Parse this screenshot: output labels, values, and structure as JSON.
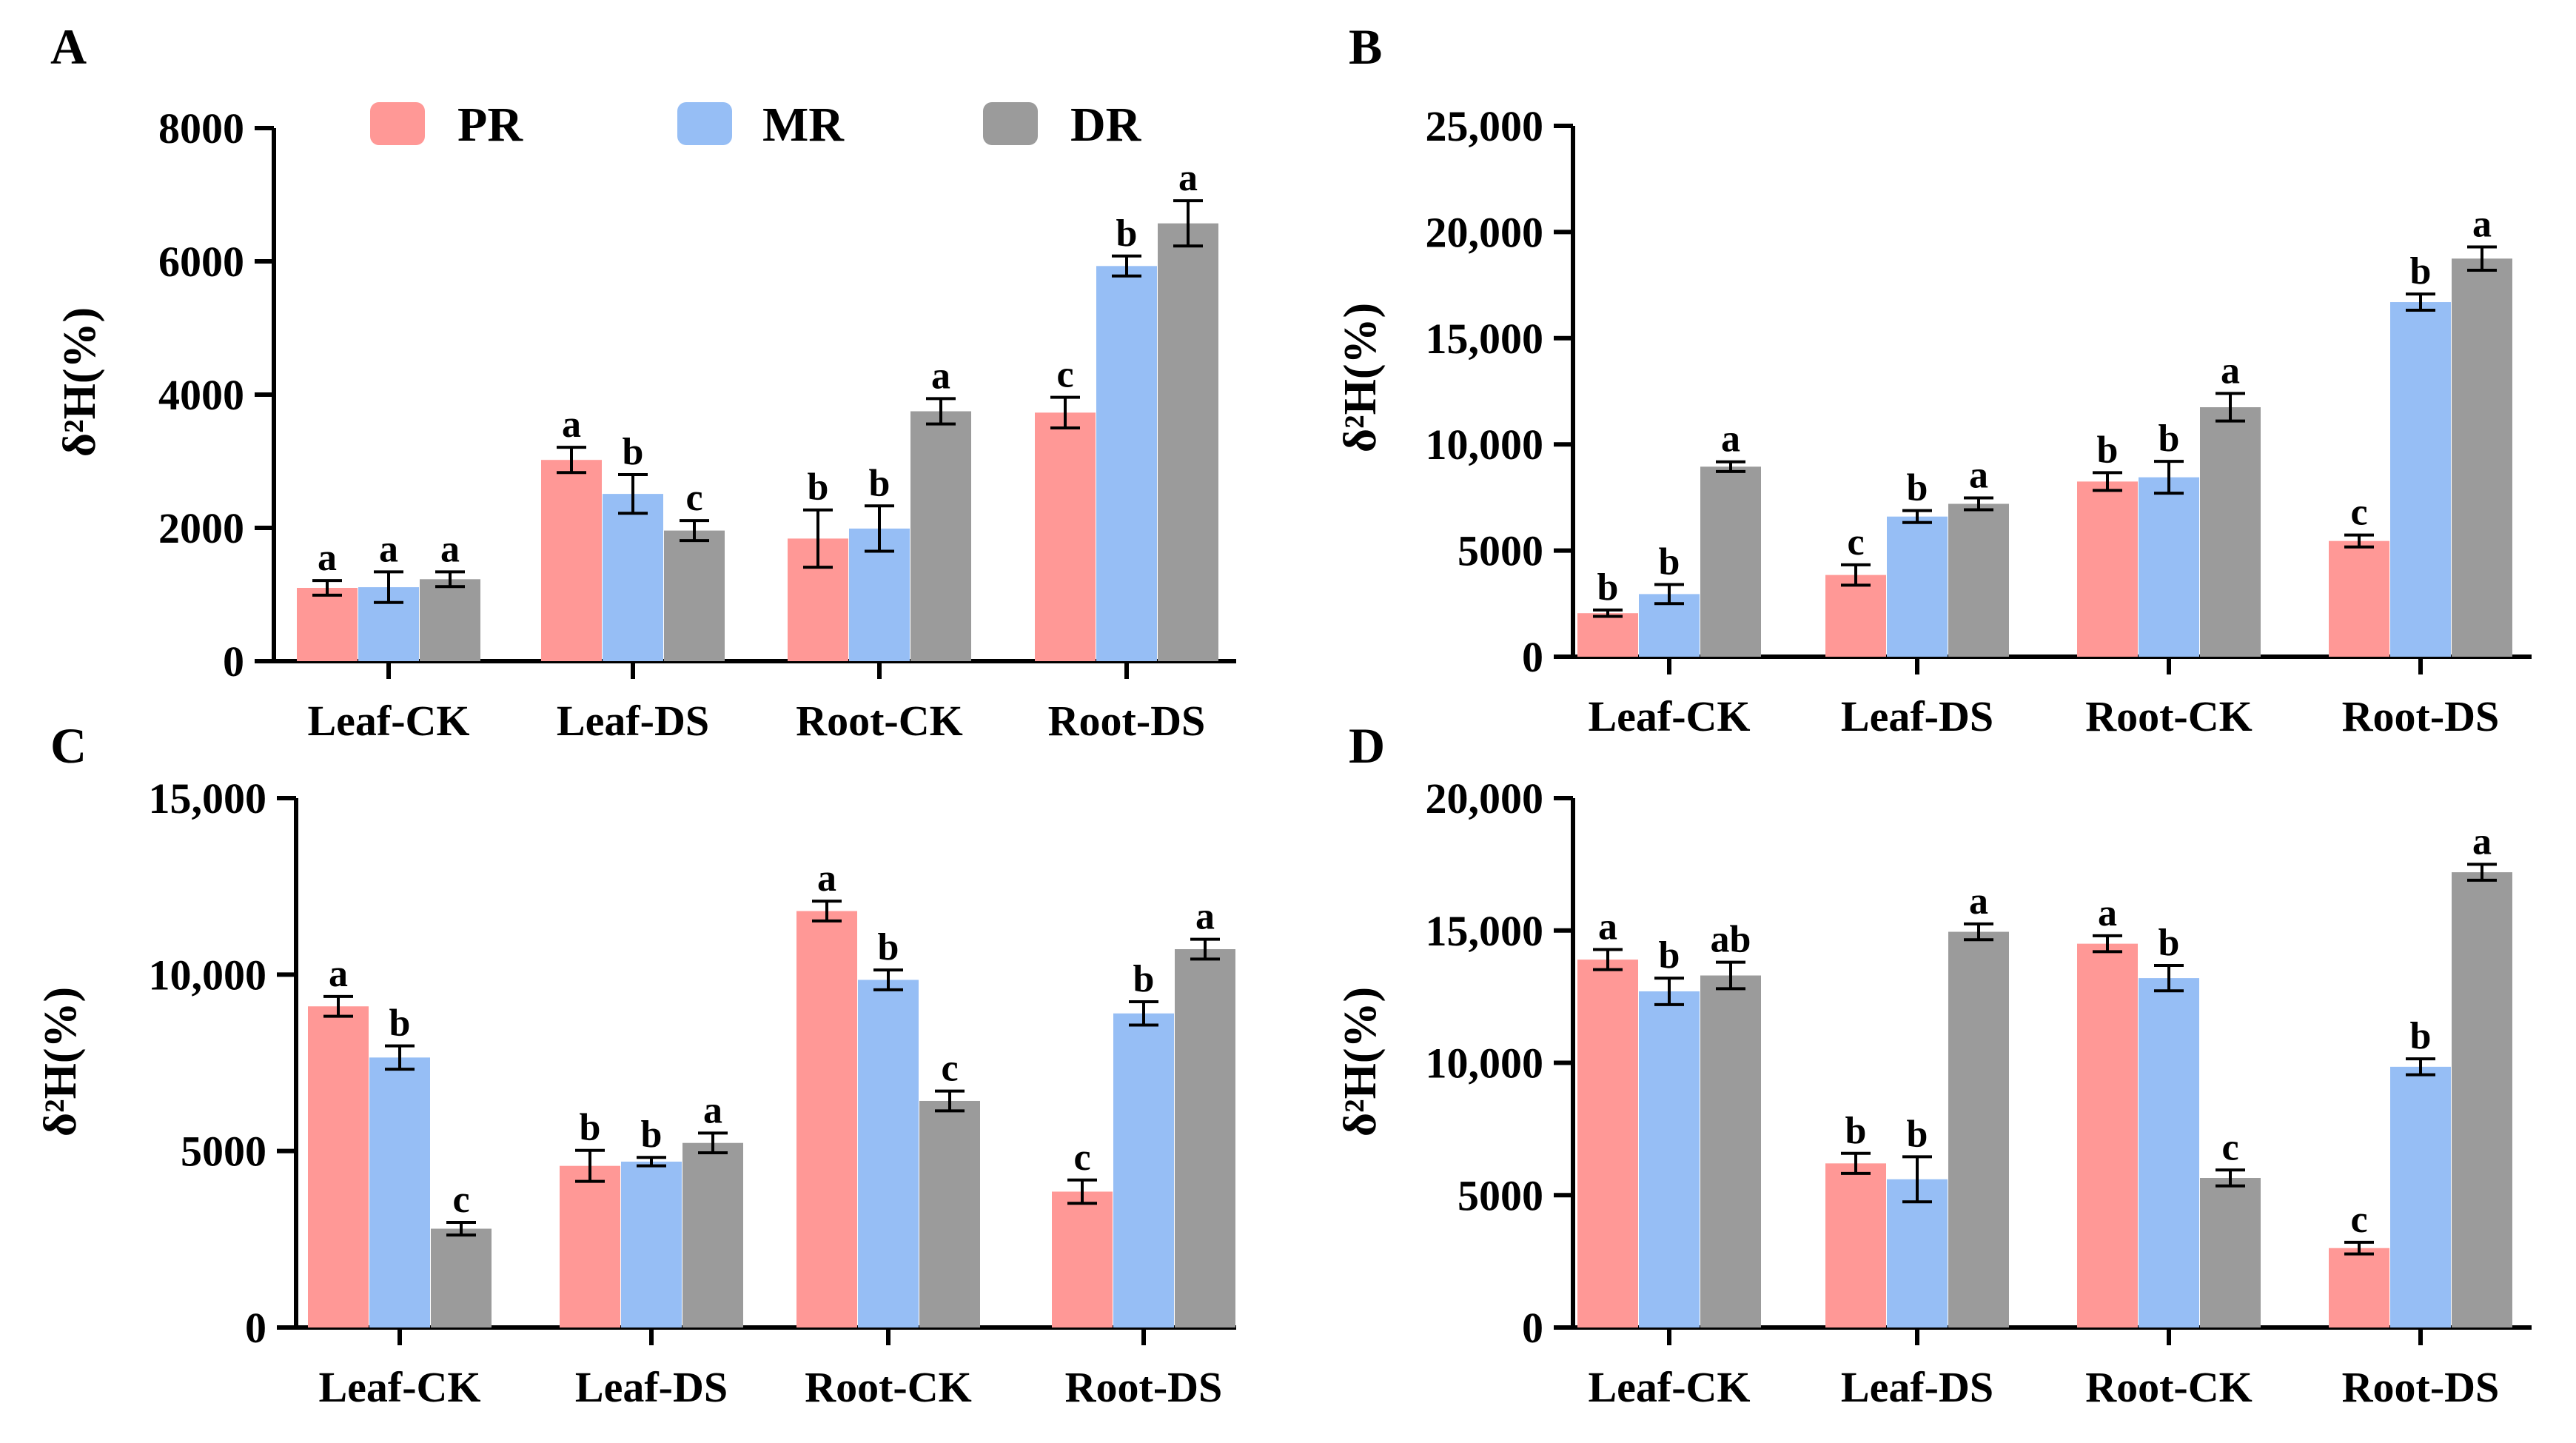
{
  "legend": [
    {
      "name": "PR",
      "color": "#FF9896"
    },
    {
      "name": "MR",
      "color": "#96BEF5"
    },
    {
      "name": "DR",
      "color": "#9B9B9B"
    }
  ],
  "chart_data": [
    {
      "type": "bar",
      "panel": "A",
      "ylabel": "δ²H(%)",
      "ylim": [
        0,
        8000
      ],
      "yticks": [
        0,
        2000,
        4000,
        6000,
        8000
      ],
      "ytick_labels": [
        "0",
        "2000",
        "4000",
        "6000",
        "8000"
      ],
      "categories": [
        "Leaf-CK",
        "Leaf-DS",
        "Root-CK",
        "Root-DS"
      ],
      "series": [
        {
          "name": "PR",
          "values": [
            1100,
            3020,
            1840,
            3730
          ],
          "errors": [
            110,
            190,
            430,
            230
          ],
          "labels": [
            "a",
            "a",
            "b",
            "c"
          ]
        },
        {
          "name": "MR",
          "values": [
            1110,
            2510,
            1990,
            5930
          ],
          "errors": [
            230,
            290,
            340,
            150
          ],
          "labels": [
            "a",
            "b",
            "b",
            "b"
          ]
        },
        {
          "name": "DR",
          "values": [
            1230,
            1960,
            3750,
            6570
          ],
          "errors": [
            110,
            150,
            190,
            340
          ],
          "labels": [
            "a",
            "c",
            "a",
            "a"
          ]
        }
      ]
    },
    {
      "type": "bar",
      "panel": "B",
      "ylabel": "δ²H(%)",
      "ylim": [
        0,
        25000
      ],
      "yticks": [
        0,
        5000,
        10000,
        15000,
        20000,
        25000
      ],
      "ytick_labels": [
        "0",
        "5000",
        "10,000",
        "15,000",
        "20,000",
        "25,000"
      ],
      "categories": [
        "Leaf-CK",
        "Leaf-DS",
        "Root-CK",
        "Root-DS"
      ],
      "series": [
        {
          "name": "PR",
          "values": [
            2050,
            3850,
            8250,
            5450
          ],
          "errors": [
            150,
            480,
            420,
            280
          ],
          "labels": [
            "b",
            "c",
            "b",
            "c"
          ]
        },
        {
          "name": "MR",
          "values": [
            2950,
            6600,
            8450,
            16700
          ],
          "errors": [
            450,
            280,
            750,
            380
          ],
          "labels": [
            "b",
            "b",
            "b",
            "b"
          ]
        },
        {
          "name": "DR",
          "values": [
            8950,
            7200,
            11750,
            18750
          ],
          "errors": [
            230,
            280,
            650,
            550
          ],
          "labels": [
            "a",
            "a",
            "a",
            "a"
          ]
        }
      ]
    },
    {
      "type": "bar",
      "panel": "C",
      "ylabel": "δ²H(%)",
      "ylim": [
        0,
        15000
      ],
      "yticks": [
        0,
        5000,
        10000,
        15000
      ],
      "ytick_labels": [
        "0",
        "5000",
        "10,000",
        "15,000"
      ],
      "categories": [
        "Leaf-CK",
        "Leaf-DS",
        "Root-CK",
        "Root-DS"
      ],
      "series": [
        {
          "name": "PR",
          "values": [
            9100,
            4580,
            11800,
            3850
          ],
          "errors": [
            280,
            440,
            280,
            330
          ],
          "labels": [
            "a",
            "b",
            "a",
            "c"
          ]
        },
        {
          "name": "MR",
          "values": [
            7650,
            4700,
            9850,
            8900
          ],
          "errors": [
            330,
            120,
            280,
            330
          ],
          "labels": [
            "b",
            "b",
            "b",
            "b"
          ]
        },
        {
          "name": "DR",
          "values": [
            2800,
            5230,
            6420,
            10720
          ],
          "errors": [
            180,
            280,
            280,
            280
          ],
          "labels": [
            "c",
            "a",
            "c",
            "a"
          ]
        }
      ]
    },
    {
      "type": "bar",
      "panel": "D",
      "ylabel": "δ²H(%)",
      "ylim": [
        0,
        20000
      ],
      "yticks": [
        0,
        5000,
        10000,
        15000,
        20000
      ],
      "ytick_labels": [
        "0",
        "5000",
        "10,000",
        "15,000",
        "20,000"
      ],
      "categories": [
        "Leaf-CK",
        "Leaf-DS",
        "Root-CK",
        "Root-DS"
      ],
      "series": [
        {
          "name": "PR",
          "values": [
            13900,
            6200,
            14500,
            3000
          ],
          "errors": [
            380,
            380,
            300,
            220
          ],
          "labels": [
            "a",
            "b",
            "a",
            "c"
          ]
        },
        {
          "name": "MR",
          "values": [
            12700,
            5600,
            13200,
            9850
          ],
          "errors": [
            500,
            850,
            480,
            300
          ],
          "labels": [
            "b",
            "b",
            "b",
            "b"
          ]
        },
        {
          "name": "DR",
          "values": [
            13300,
            14950,
            5650,
            17200
          ],
          "errors": [
            500,
            300,
            300,
            300
          ],
          "labels": [
            "ab",
            "a",
            "c",
            "a"
          ]
        }
      ]
    }
  ]
}
